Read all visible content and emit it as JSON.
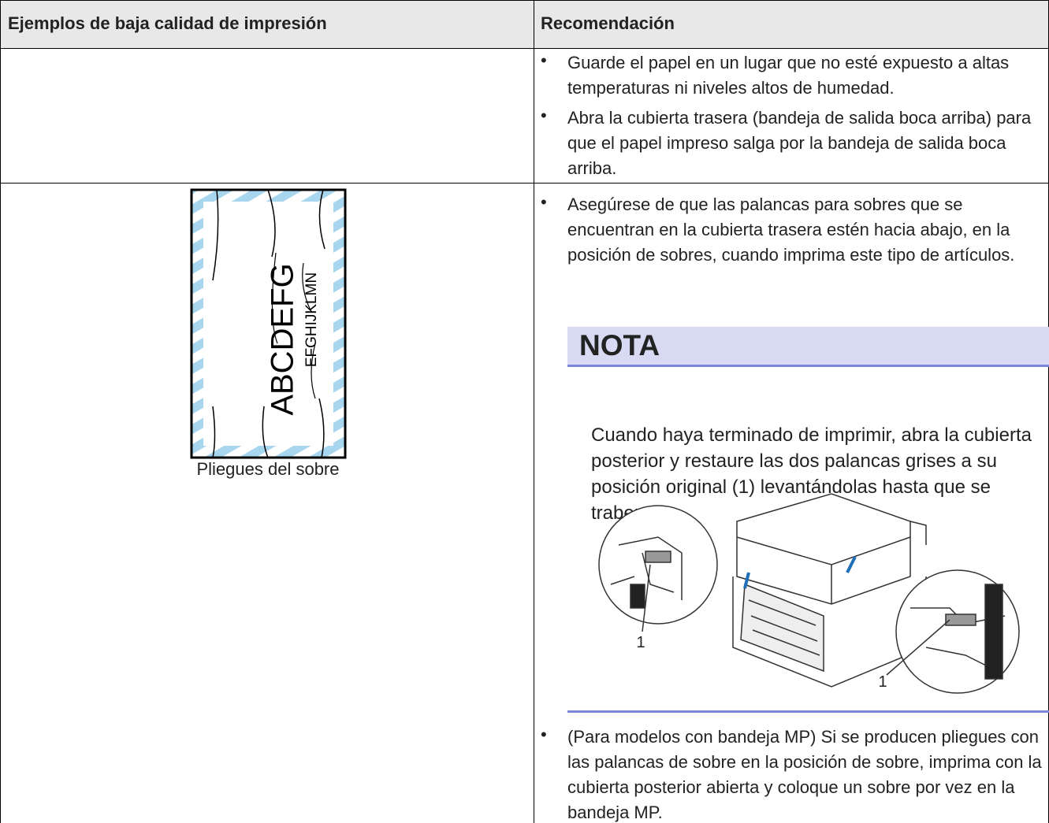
{
  "table": {
    "headers": [
      "Ejemplos de baja calidad de impresión",
      "Recomendación"
    ],
    "rows": [
      {
        "recommendations": [
          "Guarde el papel en un lugar que no esté expuesto a altas temperaturas ni niveles altos de humedad.",
          "Abra la cubierta trasera (bandeja de salida boca arriba) para que el papel impreso salga por la bandeja de salida boca arriba."
        ]
      },
      {
        "example": {
          "illustration_texts": [
            "ABCDEFG",
            "EFGHIJKLMN"
          ],
          "caption": "Pliegues del sobre"
        },
        "recommendations": [
          "Asegúrese de que las palancas para sobres que se encuentran en la cubierta trasera estén hacia abajo, en la posición de sobres, cuando imprima este tipo de artículos."
        ],
        "note": {
          "title": "NOTA",
          "text": "Cuando haya terminado de imprimir, abra la cubierta posterior y restaure las dos palancas grises a su posición original (1) levantándolas hasta que se traben.",
          "callouts": [
            "1",
            "1"
          ]
        },
        "recommendations_after": [
          "(Para modelos con bandeja MP) Si se producen pliegues con las palancas de sobre en la posición de sobre, imprima con la cubierta posterior abierta y coloque un sobre por vez en la bandeja MP."
        ]
      }
    ]
  }
}
